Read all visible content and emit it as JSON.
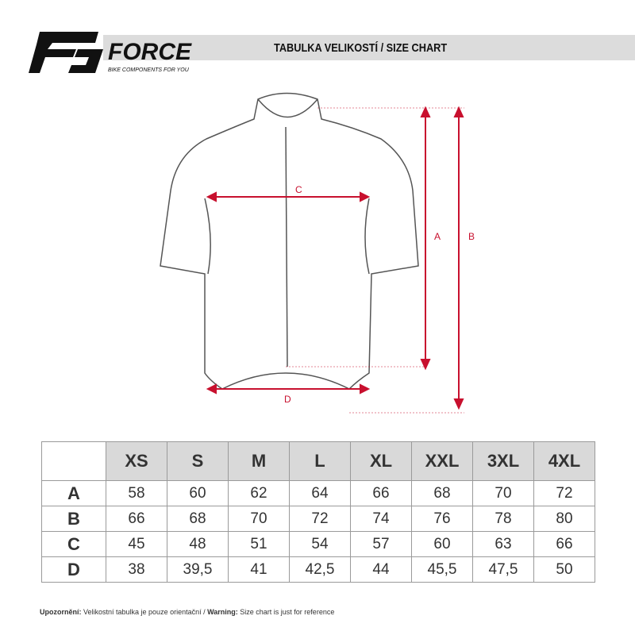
{
  "brand": {
    "name": "FORCE",
    "tagline": "BIKE COMPONENTS FOR YOU"
  },
  "header": {
    "title": "TABULKA VELIKOSTÍ / SIZE CHART"
  },
  "diagram": {
    "labels": {
      "A": "A",
      "B": "B",
      "C": "C",
      "D": "D"
    },
    "arrow_color": "#c8102e"
  },
  "table": {
    "sizes": [
      "XS",
      "S",
      "M",
      "L",
      "XL",
      "XXL",
      "3XL",
      "4XL"
    ],
    "rows": [
      {
        "label": "A",
        "values": [
          "58",
          "60",
          "62",
          "64",
          "66",
          "68",
          "70",
          "72"
        ]
      },
      {
        "label": "B",
        "values": [
          "66",
          "68",
          "70",
          "72",
          "74",
          "76",
          "78",
          "80"
        ]
      },
      {
        "label": "C",
        "values": [
          "45",
          "48",
          "51",
          "54",
          "57",
          "60",
          "63",
          "66"
        ]
      },
      {
        "label": "D",
        "values": [
          "38",
          "39,5",
          "41",
          "42,5",
          "44",
          "45,5",
          "47,5",
          "50"
        ]
      }
    ]
  },
  "note": {
    "cz_label": "Upozornění:",
    "cz_text": " Velikostní tabulka je pouze orientační / ",
    "en_label": "Warning:",
    "en_text": " Size chart is just for reference"
  }
}
